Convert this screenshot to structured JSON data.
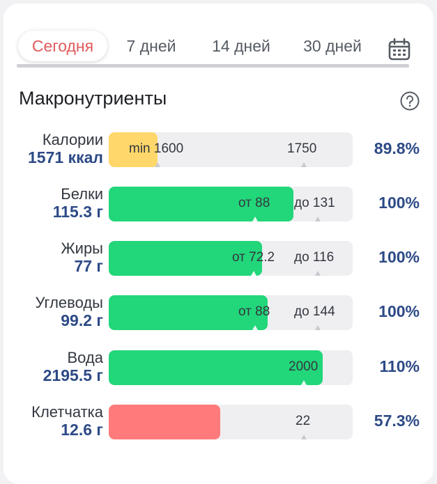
{
  "tabs": [
    {
      "label": "Сегодня",
      "active": true
    },
    {
      "label": "7 дней",
      "active": false
    },
    {
      "label": "14 дней",
      "active": false
    },
    {
      "label": "30 дней",
      "active": false
    }
  ],
  "section": {
    "title": "Макронутриенты",
    "help_icon": "question-circle-icon"
  },
  "colors": {
    "accent_tab": "#e05a5a",
    "value_blue": "#2d4a86",
    "green": "#22d67a",
    "yellow": "#ffd76a",
    "red": "#ff7b7b"
  },
  "nutrients": [
    {
      "name": "Калории",
      "value": "1571 ккал",
      "percent": "89.8%",
      "fill_color": "yellow",
      "fill_fraction": 0.2,
      "marks": [
        {
          "text": "min 1600"
        },
        {
          "text": "1750"
        }
      ]
    },
    {
      "name": "Белки",
      "value": "115.3 г",
      "percent": "100%",
      "fill_color": "green",
      "fill_fraction": 0.757,
      "marks": [
        {
          "text": "от 88"
        },
        {
          "text": "до 131"
        }
      ]
    },
    {
      "name": "Жиры",
      "value": "77 г",
      "percent": "100%",
      "fill_color": "green",
      "fill_fraction": 0.629,
      "marks": [
        {
          "text": "от 72.2"
        },
        {
          "text": "до 116"
        }
      ]
    },
    {
      "name": "Углеводы",
      "value": "99.2 г",
      "percent": "100%",
      "fill_color": "green",
      "fill_fraction": 0.651,
      "marks": [
        {
          "text": "от 88"
        },
        {
          "text": "до 144"
        }
      ]
    },
    {
      "name": "Вода",
      "value": "2195.5 г",
      "percent": "110%",
      "fill_color": "green",
      "fill_fraction": 0.877,
      "marks": [
        {
          "text": "2000"
        }
      ]
    },
    {
      "name": "Клетчатка",
      "value": "12.6 г",
      "percent": "57.3%",
      "fill_color": "red",
      "fill_fraction": 0.457,
      "marks": [
        {
          "text": "22"
        }
      ]
    }
  ]
}
